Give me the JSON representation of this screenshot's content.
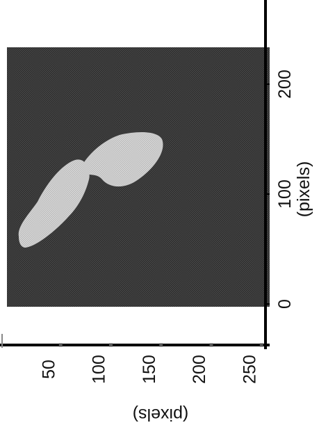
{
  "chart_data": {
    "type": "heatmap",
    "orientation": "rotated 90 degrees counter-clockwise",
    "xlabel": "(pixels)",
    "ylabel": "(pixels)",
    "x_ticks": [
      "0",
      "100",
      "200"
    ],
    "y_ticks": [
      "50",
      "100",
      "150",
      "200",
      "250"
    ],
    "x_range": [
      0,
      250
    ],
    "y_range": [
      0,
      256
    ],
    "background_intensity": "dark gray",
    "object_intensity": "light gray",
    "object_regions": [
      {
        "name": "lower blob",
        "x_range": [
          70,
          145
        ],
        "y_range": [
          10,
          70
        ]
      },
      {
        "name": "upper blob",
        "x_range": [
          125,
          175
        ],
        "y_range": [
          75,
          140
        ]
      }
    ],
    "colors": {
      "background": "#3a3a3a",
      "object": "#d0d0d0",
      "axis": "#000000",
      "text": "#111111"
    }
  }
}
